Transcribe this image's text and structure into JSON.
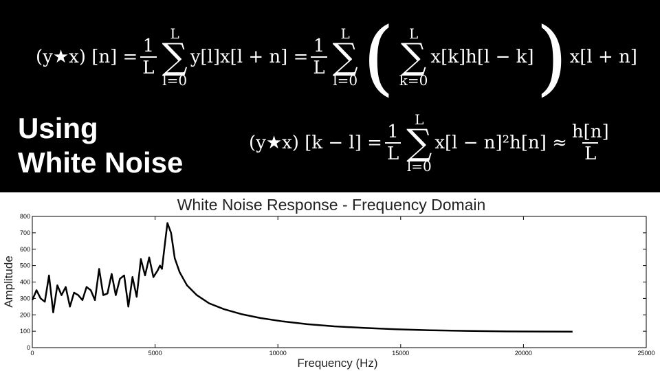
{
  "slide": {
    "heading_line1": "Using",
    "heading_line2": "White Noise",
    "equation1": {
      "lhs": "(y★x) [n] =",
      "frac_num": "1",
      "frac_den": "L",
      "sum_upper": "L",
      "sum_lower": "l=0",
      "term": "y[l]x[l + n] =",
      "frac2_num": "1",
      "frac2_den": "L",
      "sum2_upper": "L",
      "sum2_lower": "l=0",
      "inner_sum_upper": "L",
      "inner_sum_lower": "k=0",
      "inner_term": "x[k]h[l − k]",
      "tail": "x[l + n]"
    },
    "equation2": {
      "lhs": "(y★x) [k − l] =",
      "frac_num": "1",
      "frac_den": "L",
      "sum_upper": "L",
      "sum_lower": "l=0",
      "term": "x[l − n]²h[n] ≈",
      "rhs_num": "h[n]",
      "rhs_den": "L"
    }
  },
  "chart_data": {
    "type": "line",
    "title": "White Noise Response - Frequency Domain",
    "xlabel": "Frequency (Hz)",
    "ylabel": "Amplitude",
    "xlim": [
      0,
      25000
    ],
    "ylim": [
      0,
      800
    ],
    "xticks": [
      0,
      5000,
      10000,
      15000,
      20000,
      25000
    ],
    "yticks": [
      0,
      100,
      200,
      300,
      400,
      500,
      600,
      700,
      800
    ],
    "grid": false,
    "series": [
      {
        "color": "#000000",
        "x": [
          0,
          170,
          340,
          510,
          680,
          850,
          1020,
          1190,
          1360,
          1530,
          1700,
          1870,
          2040,
          2210,
          2380,
          2550,
          2720,
          2890,
          3060,
          3230,
          3400,
          3570,
          3740,
          3910,
          4080,
          4250,
          4420,
          4590,
          4760,
          4930,
          5100,
          5200,
          5280,
          5380,
          5500,
          5650,
          5800,
          6000,
          6300,
          6700,
          7200,
          7800,
          8500,
          9300,
          10200,
          11200,
          12300,
          13500,
          14800,
          16200,
          17700,
          19300,
          21000,
          22000
        ],
        "y": [
          290,
          350,
          300,
          280,
          440,
          215,
          380,
          320,
          370,
          250,
          335,
          320,
          290,
          370,
          350,
          290,
          480,
          320,
          330,
          450,
          320,
          420,
          440,
          250,
          430,
          310,
          540,
          440,
          550,
          430,
          470,
          500,
          480,
          610,
          760,
          700,
          545,
          460,
          380,
          320,
          270,
          235,
          205,
          180,
          160,
          143,
          130,
          120,
          112,
          106,
          102,
          99,
          98,
          97
        ]
      }
    ]
  }
}
